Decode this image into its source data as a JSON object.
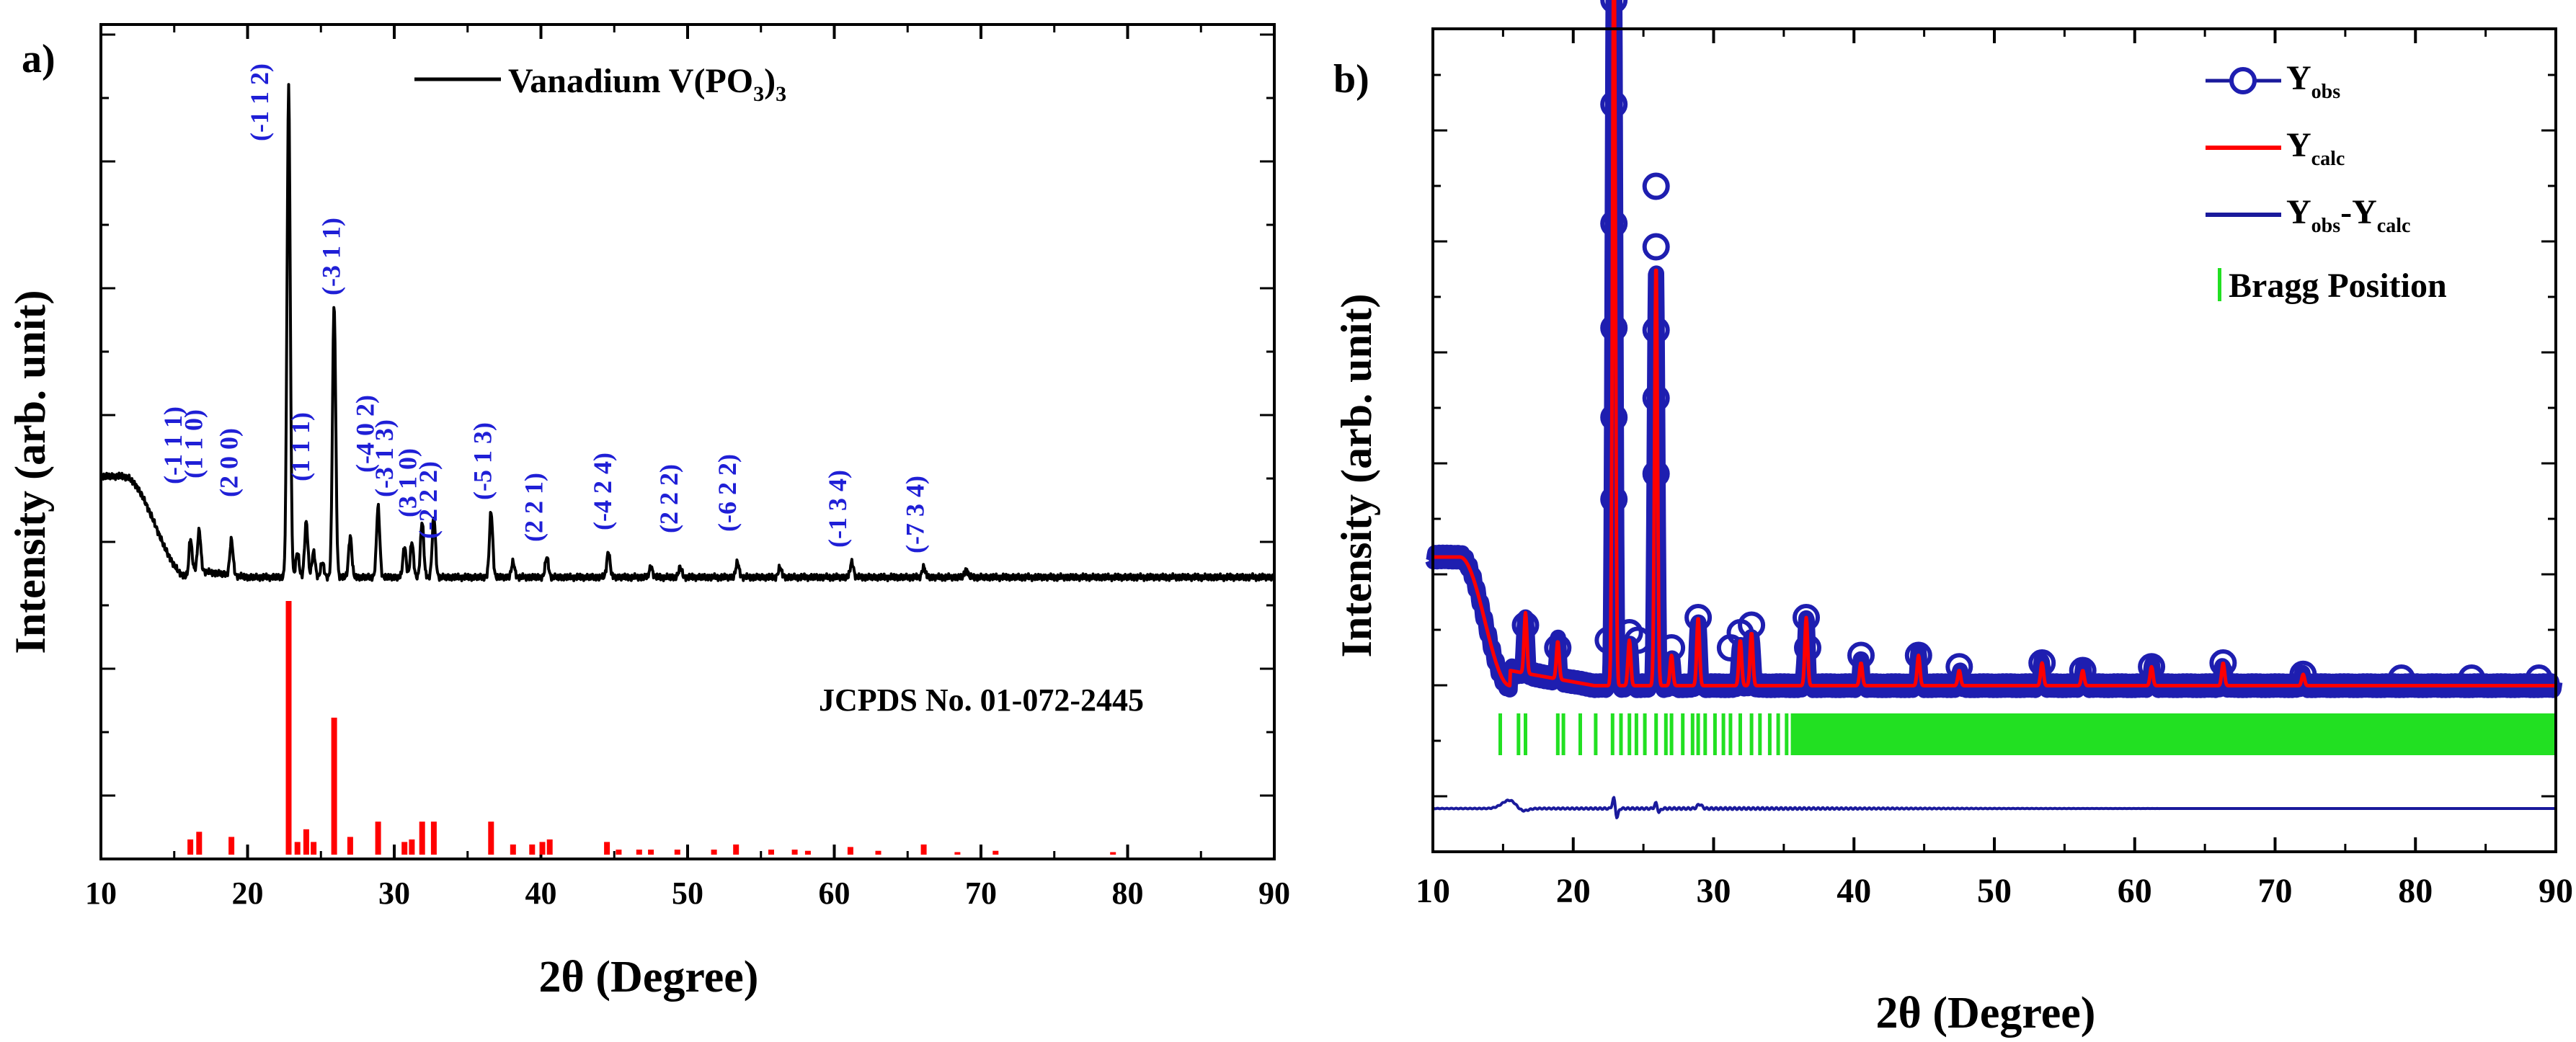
{
  "colors": {
    "black": "#000000",
    "red": "#ff0000",
    "blue_label": "#1f1fd6",
    "navy": "#1a1a9c",
    "navy_marker": "#1e1eb0",
    "green": "#22e022"
  },
  "chart_data": [
    {
      "type": "line",
      "panel_label": "a)",
      "xlabel": "2θ (Degree)",
      "ylabel": "Intensity (arb. unit)",
      "xlim": [
        10,
        90
      ],
      "x_ticks": [
        "10",
        "20",
        "30",
        "40",
        "50",
        "60",
        "70",
        "80",
        "90"
      ],
      "y_ticks_labeled": false,
      "legend": {
        "position": "top",
        "label_main": "Vanadium V(PO",
        "label_sub": "3",
        "label_close": ")",
        "label_sub2": "3"
      },
      "reference_label": "JCPDS No. 01-072-2445",
      "xrd_pattern": {
        "name": "Vanadium V(PO3)3",
        "baseline_relative": 0.03,
        "peaks": [
          {
            "x": 16.1,
            "h": 0.06
          },
          {
            "x": 16.7,
            "h": 0.08
          },
          {
            "x": 18.9,
            "h": 0.07
          },
          {
            "x": 22.8,
            "h": 0.97
          },
          {
            "x": 23.4,
            "h": 0.05
          },
          {
            "x": 24.0,
            "h": 0.11
          },
          {
            "x": 24.5,
            "h": 0.05
          },
          {
            "x": 25.1,
            "h": 0.03
          },
          {
            "x": 25.9,
            "h": 0.54
          },
          {
            "x": 27.0,
            "h": 0.08
          },
          {
            "x": 28.9,
            "h": 0.14
          },
          {
            "x": 30.7,
            "h": 0.06
          },
          {
            "x": 31.2,
            "h": 0.07
          },
          {
            "x": 31.9,
            "h": 0.11
          },
          {
            "x": 32.7,
            "h": 0.12
          },
          {
            "x": 36.6,
            "h": 0.13
          },
          {
            "x": 38.1,
            "h": 0.03
          },
          {
            "x": 40.4,
            "h": 0.04
          },
          {
            "x": 44.6,
            "h": 0.05
          },
          {
            "x": 47.5,
            "h": 0.02
          },
          {
            "x": 49.5,
            "h": 0.02
          },
          {
            "x": 53.4,
            "h": 0.03
          },
          {
            "x": 56.3,
            "h": 0.02
          },
          {
            "x": 61.2,
            "h": 0.03
          },
          {
            "x": 66.1,
            "h": 0.02
          },
          {
            "x": 69.0,
            "h": 0.015
          }
        ],
        "amorphous_hump": {
          "x_center": 11.5,
          "x_end": 16.0,
          "h": 0.2
        }
      },
      "reference_pattern": {
        "name": "JCPDS No. 01-072-2445",
        "peaks": [
          {
            "x": 16.1,
            "h": 0.06
          },
          {
            "x": 16.7,
            "h": 0.09
          },
          {
            "x": 18.9,
            "h": 0.07
          },
          {
            "x": 22.8,
            "h": 1.0
          },
          {
            "x": 23.4,
            "h": 0.05
          },
          {
            "x": 24.0,
            "h": 0.1
          },
          {
            "x": 24.5,
            "h": 0.05
          },
          {
            "x": 25.9,
            "h": 0.54
          },
          {
            "x": 27.0,
            "h": 0.07
          },
          {
            "x": 28.9,
            "h": 0.13
          },
          {
            "x": 30.7,
            "h": 0.05
          },
          {
            "x": 31.2,
            "h": 0.06
          },
          {
            "x": 31.9,
            "h": 0.13
          },
          {
            "x": 32.7,
            "h": 0.13
          },
          {
            "x": 36.6,
            "h": 0.13
          },
          {
            "x": 38.1,
            "h": 0.04
          },
          {
            "x": 39.4,
            "h": 0.04
          },
          {
            "x": 40.1,
            "h": 0.05
          },
          {
            "x": 40.6,
            "h": 0.06
          },
          {
            "x": 44.5,
            "h": 0.05
          },
          {
            "x": 45.3,
            "h": 0.02
          },
          {
            "x": 46.7,
            "h": 0.02
          },
          {
            "x": 47.5,
            "h": 0.02
          },
          {
            "x": 49.3,
            "h": 0.02
          },
          {
            "x": 51.8,
            "h": 0.02
          },
          {
            "x": 53.3,
            "h": 0.04
          },
          {
            "x": 55.7,
            "h": 0.02
          },
          {
            "x": 57.3,
            "h": 0.02
          },
          {
            "x": 58.2,
            "h": 0.015
          },
          {
            "x": 61.1,
            "h": 0.03
          },
          {
            "x": 63.0,
            "h": 0.015
          },
          {
            "x": 66.1,
            "h": 0.04
          },
          {
            "x": 68.4,
            "h": 0.01
          },
          {
            "x": 71.0,
            "h": 0.015
          },
          {
            "x": 79.0,
            "h": 0.01
          }
        ]
      },
      "annotations": [
        {
          "text": "(-1 1 1)",
          "x": 15.5
        },
        {
          "text": "(1 1 0)",
          "x": 16.9
        },
        {
          "text": "(2 0 0)",
          "x": 19.3
        },
        {
          "text": "(-1 1 2)",
          "x": 21.4
        },
        {
          "text": "(1 1 1)",
          "x": 24.2
        },
        {
          "text": "(-3 1 1)",
          "x": 26.3
        },
        {
          "text": "(-4 0 2)",
          "x": 28.6
        },
        {
          "text": "(-3 1 3)",
          "x": 29.9
        },
        {
          "text": "(3 1 0)",
          "x": 31.5
        },
        {
          "text": "(-2 2 2)",
          "x": 32.9
        },
        {
          "text": "(-5 1 3)",
          "x": 36.6
        },
        {
          "text": "(2 2 1)",
          "x": 40.1
        },
        {
          "text": "(-4 2 4)",
          "x": 44.8
        },
        {
          "text": "(2 2 2)",
          "x": 49.3
        },
        {
          "text": "(-6 2 2)",
          "x": 53.3
        },
        {
          "text": "(-1 3 4)",
          "x": 60.8
        },
        {
          "text": "(-7 3 4)",
          "x": 66.1
        }
      ]
    },
    {
      "type": "line",
      "panel_label": "b)",
      "xlabel": "2θ (Degree)",
      "ylabel": "Intensity (arb. unit)",
      "xlim": [
        10,
        90
      ],
      "x_ticks": [
        "10",
        "20",
        "30",
        "40",
        "50",
        "60",
        "70",
        "80",
        "90"
      ],
      "y_ticks_labeled": false,
      "legend": {
        "position": "top-right",
        "entries": [
          {
            "name": "Y",
            "sub": "obs",
            "style": "circle-line"
          },
          {
            "name": "Y",
            "sub": "calc",
            "style": "line-red"
          },
          {
            "name": "Y",
            "sub": "obs",
            "mid": "-Y",
            "sub2": "calc",
            "style": "line-navy"
          },
          {
            "name": "Bragg Position",
            "style": "bar-green"
          }
        ]
      },
      "rietveld": {
        "baseline_relative": 0.21,
        "peaks": [
          {
            "x": 16.6,
            "h": 0.08
          },
          {
            "x": 18.9,
            "h": 0.05
          },
          {
            "x": 22.9,
            "h": 1.0
          },
          {
            "x": 24.0,
            "h": 0.06
          },
          {
            "x": 25.9,
            "h": 0.56
          },
          {
            "x": 27.0,
            "h": 0.04
          },
          {
            "x": 28.9,
            "h": 0.09
          },
          {
            "x": 31.9,
            "h": 0.06
          },
          {
            "x": 32.7,
            "h": 0.07
          },
          {
            "x": 36.6,
            "h": 0.09
          },
          {
            "x": 40.5,
            "h": 0.03
          },
          {
            "x": 44.6,
            "h": 0.04
          },
          {
            "x": 47.5,
            "h": 0.02
          },
          {
            "x": 53.4,
            "h": 0.03
          },
          {
            "x": 56.3,
            "h": 0.02
          },
          {
            "x": 61.2,
            "h": 0.025
          },
          {
            "x": 66.3,
            "h": 0.03
          },
          {
            "x": 72.0,
            "h": 0.015
          }
        ],
        "hump": {
          "x_start": 10.0,
          "x_end": 15.5,
          "h": 0.17
        },
        "bragg_range": [
          14.8,
          90.0
        ],
        "bragg_dense_start": 35.5
      }
    }
  ]
}
